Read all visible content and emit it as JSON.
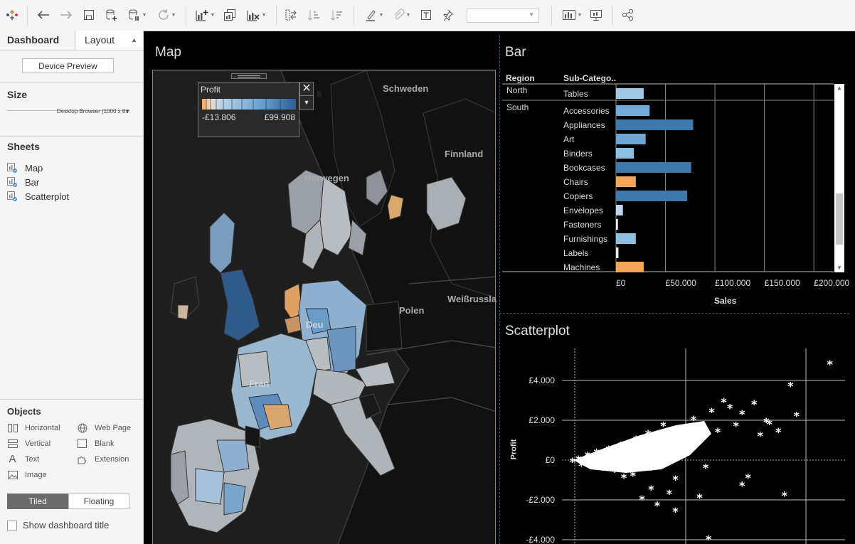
{
  "toolbar": {
    "icons": [
      "tableau-logo-icon",
      "undo-icon",
      "redo-icon",
      "save-icon",
      "new-data-source-icon",
      "pause-updates-icon",
      "refresh-icon",
      "new-worksheet-icon",
      "duplicate-sheet-icon",
      "clear-sheet-icon",
      "swap-icon",
      "sort-ascending-icon",
      "sort-descending-icon",
      "highlight-icon",
      "group-icon",
      "labels-icon",
      "pin-icon",
      "fit-select",
      "show-me-icon",
      "presentation-icon",
      "share-icon"
    ],
    "fit_value": ""
  },
  "sidebar": {
    "tab_dashboard": "Dashboard",
    "tab_layout": "Layout",
    "device_preview": "Device Preview",
    "size_heading": "Size",
    "size_value": "Desktop Browser (1000 x 8...",
    "sheets_heading": "Sheets",
    "sheets": [
      "Map",
      "Bar",
      "Scatterplot"
    ],
    "objects_heading": "Objects",
    "objects": [
      {
        "label": "Horizontal",
        "icon": "horizontal-icon"
      },
      {
        "label": "Web Page",
        "icon": "globe-icon"
      },
      {
        "label": "Vertical",
        "icon": "vertical-icon"
      },
      {
        "label": "Blank",
        "icon": "blank-icon"
      },
      {
        "label": "Text",
        "icon": "text-icon"
      },
      {
        "label": "Extension",
        "icon": "puzzle-icon"
      },
      {
        "label": "Image",
        "icon": "image-icon"
      }
    ],
    "tiled": "Tiled",
    "floating": "Floating",
    "show_title": "Show dashboard title"
  },
  "map": {
    "title": "Map",
    "legend_title": "Profit",
    "legend_min": "-£13.806",
    "legend_max": "£99.908",
    "labels": {
      "schweden": "Schweden",
      "finnland": "Finnland",
      "norwegen": "Norwegen",
      "polen": "Polen",
      "weissrussland": "Weißrussla",
      "deutschland": "Deu",
      "frankreich": "Fran"
    }
  },
  "bar": {
    "title": "Bar",
    "col_region": "Region",
    "col_subcat": "Sub-Catego..",
    "axis_title": "Sales",
    "ticks": [
      "£0",
      "£50.000",
      "£100.000",
      "£150.000",
      "£200.000"
    ],
    "regions": [
      "North",
      "South"
    ]
  },
  "scatter": {
    "title": "Scatterplot",
    "ylabel": "Profit",
    "yticks": [
      "£4.000",
      "£2.000",
      "£0",
      "-£2.000",
      "-£4.000"
    ]
  },
  "chart_data": [
    {
      "type": "bar",
      "title": "Bar",
      "xlabel": "Sales",
      "ylabel": "Sub-Category",
      "xlim": [
        0,
        220000
      ],
      "categories": [
        "Tables",
        "Accessories",
        "Appliances",
        "Art",
        "Binders",
        "Bookcases",
        "Chairs",
        "Copiers",
        "Envelopes",
        "Fasteners",
        "Furnishings",
        "Labels",
        "Machines"
      ],
      "regions": [
        "North",
        "South",
        "South",
        "South",
        "South",
        "South",
        "South",
        "South",
        "South",
        "South",
        "South",
        "South",
        "South"
      ],
      "values": [
        28000,
        34000,
        78000,
        30000,
        18000,
        76000,
        20000,
        72000,
        7000,
        2000,
        20000,
        2500,
        28000
      ],
      "colors": [
        "#9ec8e4",
        "#74abd6",
        "#3e79ad",
        "#6ea6d3",
        "#8ec0e2",
        "#3e79ad",
        "#f2a65a",
        "#3e79ad",
        "#bcd8ec",
        "#e9e9e9",
        "#8ec0e2",
        "#e9e9e9",
        "#f2a65a"
      ]
    },
    {
      "type": "scatter",
      "title": "Scatterplot",
      "ylabel": "Profit",
      "ylim": [
        -4000,
        4500
      ],
      "marker": "asterisk",
      "color": "#ffffff",
      "points": [
        [
          0.1,
          0
        ],
        [
          0.12,
          100
        ],
        [
          0.13,
          -200
        ],
        [
          0.15,
          300
        ],
        [
          0.16,
          -100
        ],
        [
          0.17,
          200
        ],
        [
          0.18,
          450
        ],
        [
          0.2,
          -300
        ],
        [
          0.22,
          600
        ],
        [
          0.24,
          -500
        ],
        [
          0.26,
          800
        ],
        [
          0.28,
          200
        ],
        [
          0.3,
          -700
        ],
        [
          0.31,
          1100
        ],
        [
          0.33,
          500
        ],
        [
          0.35,
          1400
        ],
        [
          0.36,
          -400
        ],
        [
          0.38,
          900
        ],
        [
          0.4,
          1800
        ],
        [
          0.41,
          300
        ],
        [
          0.43,
          1200
        ],
        [
          0.44,
          -900
        ],
        [
          0.46,
          1600
        ],
        [
          0.48,
          700
        ],
        [
          0.5,
          2100
        ],
        [
          0.52,
          1000
        ],
        [
          0.54,
          -300
        ],
        [
          0.56,
          2500
        ],
        [
          0.58,
          1500
        ],
        [
          0.6,
          3000
        ],
        [
          0.62,
          2700
        ],
        [
          0.64,
          1800
        ],
        [
          0.66,
          2400
        ],
        [
          0.68,
          -800
        ],
        [
          0.7,
          2900
        ],
        [
          0.72,
          1300
        ],
        [
          0.74,
          2000
        ],
        [
          0.78,
          1500
        ],
        [
          0.8,
          -1700
        ],
        [
          0.82,
          3800
        ],
        [
          0.84,
          2300
        ],
        [
          0.95,
          4900
        ],
        [
          0.33,
          -1900
        ],
        [
          0.38,
          -2200
        ],
        [
          0.44,
          -2500
        ],
        [
          0.52,
          -1800
        ],
        [
          0.55,
          -3900
        ],
        [
          0.66,
          -1200
        ],
        [
          0.75,
          1900
        ],
        [
          0.2,
          -400
        ],
        [
          0.27,
          -800
        ],
        [
          0.36,
          -1400
        ],
        [
          0.42,
          -1600
        ]
      ]
    }
  ]
}
